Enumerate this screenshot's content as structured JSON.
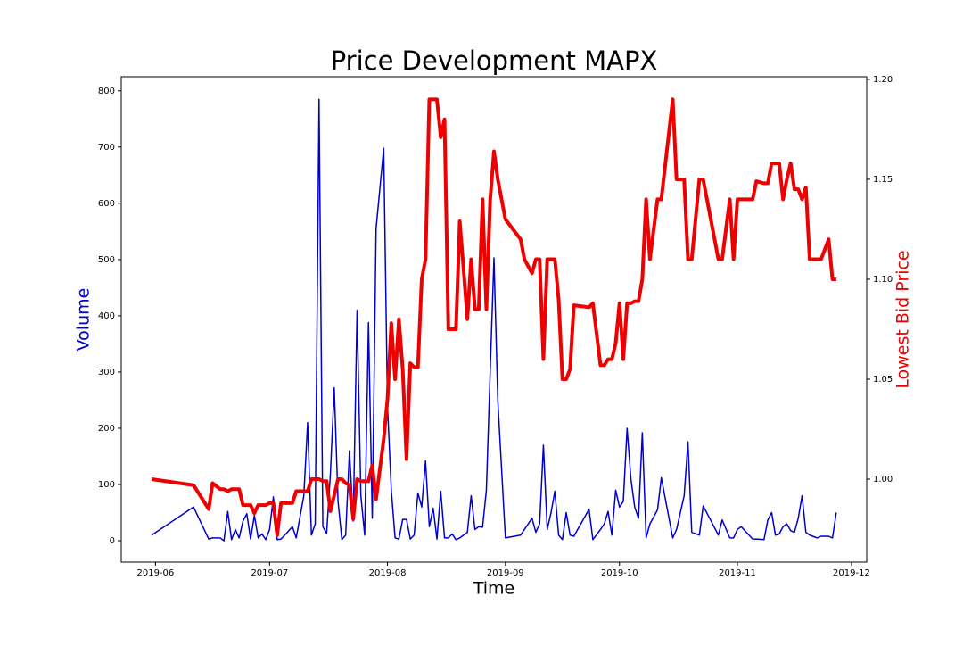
{
  "chart_data": {
    "type": "line",
    "title": "Price Development MAPX",
    "xlabel": "Time",
    "ylabel": "Volume",
    "y2label": "Lowest Bid Price",
    "x": [
      "2019-05-31",
      "2019-06-11",
      "2019-06-15",
      "2019-06-16",
      "2019-06-18",
      "2019-06-19",
      "2019-06-20",
      "2019-06-21",
      "2019-06-22",
      "2019-06-23",
      "2019-06-24",
      "2019-06-25",
      "2019-06-26",
      "2019-06-27",
      "2019-06-28",
      "2019-06-29",
      "2019-06-30",
      "2019-07-01",
      "2019-07-02",
      "2019-07-03",
      "2019-07-04",
      "2019-07-05",
      "2019-07-07",
      "2019-07-08",
      "2019-07-10",
      "2019-07-11",
      "2019-07-12",
      "2019-07-13",
      "2019-07-14",
      "2019-07-15",
      "2019-07-16",
      "2019-07-17",
      "2019-07-18",
      "2019-07-19",
      "2019-07-20",
      "2019-07-21",
      "2019-07-22",
      "2019-07-23",
      "2019-07-24",
      "2019-07-25",
      "2019-07-26",
      "2019-07-27",
      "2019-07-28",
      "2019-07-29",
      "2019-07-31",
      "2019-08-01",
      "2019-08-02",
      "2019-08-03",
      "2019-08-04",
      "2019-08-05",
      "2019-08-06",
      "2019-08-07",
      "2019-08-08",
      "2019-08-09",
      "2019-08-10",
      "2019-08-11",
      "2019-08-12",
      "2019-08-13",
      "2019-08-14",
      "2019-08-15",
      "2019-08-16",
      "2019-08-17",
      "2019-08-18",
      "2019-08-19",
      "2019-08-20",
      "2019-08-21",
      "2019-08-22",
      "2019-08-23",
      "2019-08-24",
      "2019-08-25",
      "2019-08-26",
      "2019-08-27",
      "2019-08-28",
      "2019-08-29",
      "2019-08-30",
      "2019-09-01",
      "2019-09-05",
      "2019-09-06",
      "2019-09-08",
      "2019-09-09",
      "2019-09-10",
      "2019-09-11",
      "2019-09-12",
      "2019-09-13",
      "2019-09-14",
      "2019-09-15",
      "2019-09-16",
      "2019-09-17",
      "2019-09-18",
      "2019-09-19",
      "2019-09-23",
      "2019-09-24",
      "2019-09-26",
      "2019-09-27",
      "2019-09-28",
      "2019-09-29",
      "2019-09-30",
      "2019-10-01",
      "2019-10-02",
      "2019-10-03",
      "2019-10-04",
      "2019-10-05",
      "2019-10-06",
      "2019-10-07",
      "2019-10-08",
      "2019-10-09",
      "2019-10-11",
      "2019-10-12",
      "2019-10-15",
      "2019-10-16",
      "2019-10-18",
      "2019-10-19",
      "2019-10-20",
      "2019-10-22",
      "2019-10-23",
      "2019-10-27",
      "2019-10-28",
      "2019-10-30",
      "2019-10-31",
      "2019-11-01",
      "2019-11-02",
      "2019-11-05",
      "2019-11-06",
      "2019-11-08",
      "2019-11-09",
      "2019-11-10",
      "2019-11-11",
      "2019-11-12",
      "2019-11-13",
      "2019-11-14",
      "2019-11-15",
      "2019-11-16",
      "2019-11-17",
      "2019-11-18",
      "2019-11-19",
      "2019-11-20",
      "2019-11-22",
      "2019-11-23",
      "2019-11-25",
      "2019-11-26",
      "2019-11-27"
    ],
    "series": [
      {
        "name": "Volume",
        "color": "#0000cc",
        "axis": "y",
        "values": [
          10,
          60,
          3,
          5,
          5,
          0,
          52,
          2,
          20,
          5,
          35,
          48,
          3,
          45,
          5,
          12,
          2,
          20,
          78,
          2,
          3,
          10,
          25,
          5,
          80,
          210,
          10,
          30,
          785,
          25,
          13,
          120,
          272,
          70,
          2,
          10,
          160,
          35,
          410,
          80,
          10,
          388,
          40,
          555,
          698,
          240,
          90,
          5,
          3,
          38,
          38,
          3,
          10,
          85,
          60,
          142,
          25,
          58,
          3,
          88,
          5,
          5,
          12,
          2,
          5,
          10,
          15,
          80,
          20,
          25,
          24,
          90,
          300,
          503,
          250,
          5,
          10,
          20,
          40,
          15,
          30,
          170,
          20,
          50,
          88,
          10,
          2,
          50,
          10,
          8,
          56,
          2,
          20,
          30,
          52,
          10,
          90,
          60,
          70,
          200,
          110,
          60,
          40,
          192,
          5,
          30,
          55,
          112,
          5,
          20,
          80,
          176,
          15,
          10,
          62,
          10,
          37,
          5,
          5,
          20,
          25,
          3,
          3,
          2,
          37,
          50,
          10,
          12,
          25,
          30,
          18,
          15,
          40,
          80,
          15,
          10,
          5,
          8,
          8,
          5,
          50
        ]
      },
      {
        "name": "Lowest Bid Price",
        "color": "#ee0000",
        "axis": "y2",
        "values": [
          1.0,
          0.997,
          0.985,
          0.998,
          0.995,
          0.995,
          0.994,
          0.995,
          0.995,
          0.995,
          0.987,
          0.987,
          0.987,
          0.983,
          0.987,
          0.987,
          0.987,
          0.988,
          0.988,
          0.972,
          0.988,
          0.988,
          0.988,
          0.994,
          0.994,
          0.994,
          1.0,
          1.0,
          1.0,
          0.999,
          0.999,
          0.984,
          0.992,
          1.0,
          1.0,
          0.998,
          0.997,
          0.98,
          1.0,
          0.999,
          0.999,
          0.999,
          1.007,
          0.99,
          1.02,
          1.04,
          1.078,
          1.05,
          1.08,
          1.055,
          1.01,
          1.058,
          1.056,
          1.056,
          1.1,
          1.11,
          1.19,
          1.19,
          1.19,
          1.171,
          1.18,
          1.075,
          1.075,
          1.075,
          1.129,
          1.105,
          1.08,
          1.11,
          1.085,
          1.085,
          1.14,
          1.085,
          1.14,
          1.164,
          1.15,
          1.13,
          1.12,
          1.11,
          1.103,
          1.11,
          1.11,
          1.06,
          1.11,
          1.11,
          1.11,
          1.09,
          1.05,
          1.05,
          1.055,
          1.087,
          1.086,
          1.088,
          1.057,
          1.057,
          1.06,
          1.06,
          1.068,
          1.088,
          1.06,
          1.088,
          1.088,
          1.089,
          1.089,
          1.1,
          1.14,
          1.11,
          1.14,
          1.14,
          1.19,
          1.15,
          1.15,
          1.11,
          1.11,
          1.15,
          1.15,
          1.11,
          1.11,
          1.14,
          1.11,
          1.14,
          1.14,
          1.14,
          1.149,
          1.148,
          1.148,
          1.158,
          1.158,
          1.158,
          1.14,
          1.15,
          1.158,
          1.145,
          1.145,
          1.14,
          1.146,
          1.11,
          1.11,
          1.11,
          1.12,
          1.1,
          1.1
        ]
      }
    ],
    "xlim": [
      "2019-05-23",
      "2019-12-05"
    ],
    "xticks": [
      {
        "value": "2019-06-01",
        "label": "2019-06"
      },
      {
        "value": "2019-07-01",
        "label": "2019-07"
      },
      {
        "value": "2019-08-01",
        "label": "2019-08"
      },
      {
        "value": "2019-09-01",
        "label": "2019-09"
      },
      {
        "value": "2019-10-01",
        "label": "2019-10"
      },
      {
        "value": "2019-11-01",
        "label": "2019-11"
      },
      {
        "value": "2019-12-01",
        "label": "2019-12"
      }
    ],
    "ylim": [
      -38,
      825
    ],
    "yticks": [
      0,
      100,
      200,
      300,
      400,
      500,
      600,
      700,
      800
    ],
    "y2lim": [
      0.9585,
      1.2013
    ],
    "y2ticks": [
      {
        "value": 1.0,
        "label": "1.00"
      },
      1.05,
      {
        "value": 1.1,
        "label": "1.10"
      },
      1.15,
      {
        "value": 1.2,
        "label": "1.20"
      }
    ]
  }
}
